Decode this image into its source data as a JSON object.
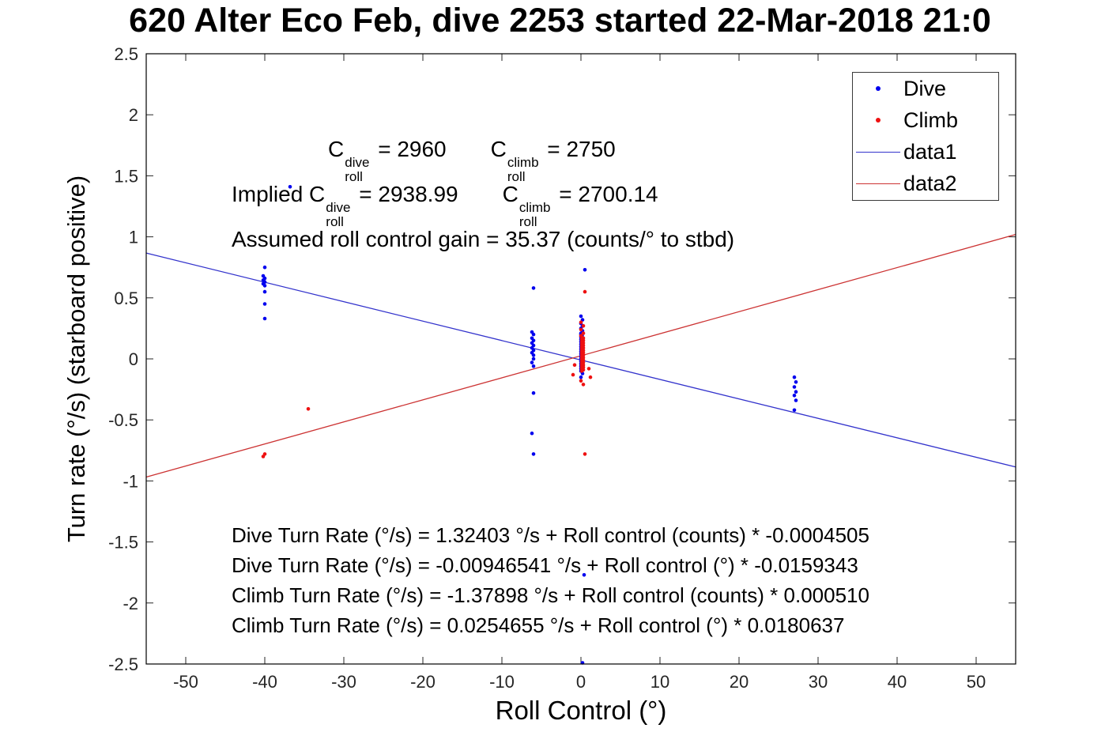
{
  "chart_data": {
    "type": "scatter",
    "title": "620 Alter Eco Feb, dive 2253 started 22-Mar-2018 21:0",
    "xlabel": "Roll Control (°)",
    "ylabel": "Turn rate (°/s) (starboard positive)",
    "xlim": [
      -55,
      55
    ],
    "ylim": [
      -2.5,
      2.5
    ],
    "xticks": [
      -50,
      -40,
      -30,
      -20,
      -10,
      0,
      10,
      20,
      30,
      40,
      50
    ],
    "yticks": [
      -2.5,
      -2,
      -1.5,
      -1,
      -0.5,
      0,
      0.5,
      1,
      1.5,
      2,
      2.5
    ],
    "grid": false,
    "legend_position": "top-right",
    "legend": [
      {
        "label": "Dive",
        "type": "dot",
        "color": "#0000ee"
      },
      {
        "label": "Climb",
        "type": "dot",
        "color": "#ee1111"
      },
      {
        "label": "data1",
        "type": "line",
        "color": "#3333cc"
      },
      {
        "label": "data2",
        "type": "line",
        "color": "#cc3333"
      }
    ],
    "series": [
      {
        "name": "Dive",
        "marker": "dot",
        "color": "#0000ee",
        "points": [
          [
            -40,
            0.75
          ],
          [
            -40.2,
            0.68
          ],
          [
            -40,
            0.66
          ],
          [
            -40.2,
            0.645
          ],
          [
            -40,
            0.63
          ],
          [
            -40.2,
            0.615
          ],
          [
            -40,
            0.6
          ],
          [
            -40,
            0.55
          ],
          [
            -40,
            0.45
          ],
          [
            -40,
            0.33
          ],
          [
            -36.8,
            1.41
          ],
          [
            -6,
            0.58
          ],
          [
            -6.2,
            0.22
          ],
          [
            -6,
            0.2
          ],
          [
            -6.2,
            0.17
          ],
          [
            -6,
            0.15
          ],
          [
            -6.2,
            0.13
          ],
          [
            -6,
            0.11
          ],
          [
            -6.2,
            0.09
          ],
          [
            -6,
            0.07
          ],
          [
            -6.2,
            0.05
          ],
          [
            -6,
            0.03
          ],
          [
            -6,
            0
          ],
          [
            -6.2,
            -0.03
          ],
          [
            -6,
            -0.06
          ],
          [
            -6,
            -0.28
          ],
          [
            -6.2,
            -0.61
          ],
          [
            -6,
            -0.78
          ],
          [
            0.5,
            0.73
          ],
          [
            0,
            0.35
          ],
          [
            0.2,
            0.32
          ],
          [
            0,
            0.29
          ],
          [
            0.2,
            0.27
          ],
          [
            0,
            0.25
          ],
          [
            0.2,
            0.23
          ],
          [
            0,
            0.21
          ],
          [
            0,
            0.2
          ],
          [
            0.15,
            0.19
          ],
          [
            0,
            0.18
          ],
          [
            0.15,
            0.17
          ],
          [
            0,
            0.16
          ],
          [
            0.15,
            0.15
          ],
          [
            0,
            0.14
          ],
          [
            0.15,
            0.13
          ],
          [
            0,
            0.12
          ],
          [
            0.15,
            0.11
          ],
          [
            0,
            0.1
          ],
          [
            0.15,
            0.09
          ],
          [
            0,
            0.08
          ],
          [
            0.15,
            0.07
          ],
          [
            0,
            0.06
          ],
          [
            0.15,
            0.05
          ],
          [
            0,
            0.04
          ],
          [
            0.15,
            0.03
          ],
          [
            0,
            0.02
          ],
          [
            0.15,
            0.01
          ],
          [
            0,
            0
          ],
          [
            0.15,
            -0.01
          ],
          [
            0,
            -0.02
          ],
          [
            0.15,
            -0.03
          ],
          [
            0,
            -0.04
          ],
          [
            0.15,
            -0.05
          ],
          [
            0,
            -0.06
          ],
          [
            0.15,
            -0.07
          ],
          [
            0,
            -0.08
          ],
          [
            0,
            -0.1
          ],
          [
            0.2,
            -0.12
          ],
          [
            0,
            -0.15
          ],
          [
            0.4,
            -1.77
          ],
          [
            0.2,
            -2.49
          ],
          [
            27,
            -0.15
          ],
          [
            27.2,
            -0.19
          ],
          [
            27,
            -0.23
          ],
          [
            27.2,
            -0.27
          ],
          [
            27,
            -0.3
          ],
          [
            27.2,
            -0.34
          ],
          [
            27,
            -0.42
          ]
        ]
      },
      {
        "name": "Climb",
        "marker": "dot",
        "color": "#ee1111",
        "points": [
          [
            -40,
            -0.78
          ],
          [
            -40.2,
            -0.8
          ],
          [
            -34.5,
            -0.41
          ],
          [
            0.5,
            0.55
          ],
          [
            0,
            0.3
          ],
          [
            0.3,
            0.27
          ],
          [
            0,
            0.24
          ],
          [
            0.3,
            0.21
          ],
          [
            0,
            0.19
          ],
          [
            0.1,
            0.18
          ],
          [
            0.3,
            0.17
          ],
          [
            0.1,
            0.16
          ],
          [
            0.3,
            0.15
          ],
          [
            0.1,
            0.14
          ],
          [
            0.3,
            0.13
          ],
          [
            0.1,
            0.12
          ],
          [
            0.3,
            0.11
          ],
          [
            0.1,
            0.1
          ],
          [
            0.3,
            0.09
          ],
          [
            0.1,
            0.08
          ],
          [
            0.3,
            0.07
          ],
          [
            0.1,
            0.06
          ],
          [
            0.3,
            0.05
          ],
          [
            0.1,
            0.04
          ],
          [
            0.3,
            0.03
          ],
          [
            0.1,
            0.02
          ],
          [
            0.3,
            0.01
          ],
          [
            0.1,
            0
          ],
          [
            0.3,
            -0.01
          ],
          [
            0.1,
            -0.02
          ],
          [
            0.3,
            -0.03
          ],
          [
            0.1,
            -0.04
          ],
          [
            0.3,
            -0.05
          ],
          [
            0.1,
            -0.06
          ],
          [
            0.3,
            -0.07
          ],
          [
            0.1,
            -0.08
          ],
          [
            0.3,
            -0.09
          ],
          [
            0.1,
            -0.1
          ],
          [
            -0.8,
            -0.05
          ],
          [
            1,
            -0.08
          ],
          [
            -1,
            -0.13
          ],
          [
            1.2,
            -0.15
          ],
          [
            0,
            -0.18
          ],
          [
            0.3,
            -0.21
          ],
          [
            0.5,
            -0.78
          ]
        ]
      }
    ],
    "lines": [
      {
        "name": "data1",
        "color": "#3333cc",
        "intercept": -0.00946541,
        "slope": -0.0159343
      },
      {
        "name": "data2",
        "color": "#cc3333",
        "intercept": 0.0254655,
        "slope": 0.0180637
      }
    ]
  },
  "annotations": {
    "line1": {
      "c1": "C",
      "sup1": "dive",
      "sub1": "roll",
      "eq1": " = 2960",
      "c2": "C",
      "sup2": "climb",
      "sub2": "roll",
      "eq2": " = 2750"
    },
    "line2": {
      "prefix": "Implied ",
      "c1": "C",
      "sup1": "dive",
      "sub1": "roll",
      "eq1": " = 2938.99",
      "c2": "C",
      "sup2": "climb",
      "sub2": "roll",
      "eq2": " = 2700.14"
    },
    "line3": "Assumed roll control gain = 35.37 (counts/° to stbd)",
    "equations": [
      "Dive Turn Rate (°/s) = 1.32403 °/s + Roll control (counts) * -0.0004505",
      "Dive Turn Rate (°/s) = -0.00946541 °/s + Roll control (°) * -0.0159343",
      "Climb Turn Rate (°/s) = -1.37898 °/s + Roll control (counts) * 0.000510",
      "Climb Turn Rate (°/s) = 0.0254655 °/s + Roll control (°) * 0.0180637"
    ]
  }
}
